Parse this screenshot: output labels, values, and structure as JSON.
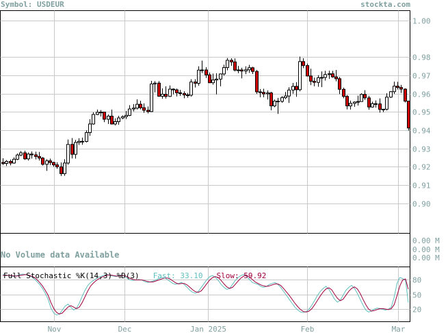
{
  "header": {
    "symbol_label": "Symbol: USDEUR",
    "site": "stockta.com"
  },
  "volume_panel": {
    "message": "No Volume data Available",
    "axis_labels": [
      "0.00 M",
      "0.00 M",
      "0.00 M"
    ]
  },
  "stochastic": {
    "title": "Full Stochastic %K(14,3) %D(3)",
    "fast_label": "Fast: 33.10",
    "slow_label": "Slow: 59.92",
    "fast_color": "#5fbfbf",
    "slow_color": "#a0003f"
  },
  "colors": {
    "up_candle": "#ffffff",
    "down_candle": "#cc0000",
    "grid": "#c8c8c8",
    "axis_text": "#7f9f9f"
  },
  "chart_data": [
    {
      "type": "candlestick",
      "title": "",
      "x_tick_labels": [
        "Nov",
        "Dec",
        "Jan 2025",
        "Feb",
        "Mar"
      ],
      "y_ticks": [
        0.9,
        0.91,
        0.92,
        0.93,
        0.94,
        0.95,
        0.96,
        0.97,
        0.98,
        1.0
      ],
      "y_tick_labels": [
        "0.90",
        "0.91",
        "0.92",
        "0.93",
        "0.94",
        "0.95",
        "0.96",
        "0.97",
        "0.98",
        "1.00"
      ],
      "ylim": [
        0.8835,
        1.0055
      ],
      "grid": true,
      "axis_side": "right",
      "candles": [
        [
          0.9223,
          0.9246,
          0.9209,
          0.9218
        ],
        [
          0.9218,
          0.9236,
          0.9204,
          0.9229
        ],
        [
          0.9229,
          0.9239,
          0.9207,
          0.922
        ],
        [
          0.922,
          0.9251,
          0.9216,
          0.9241
        ],
        [
          0.9241,
          0.9272,
          0.9236,
          0.9264
        ],
        [
          0.9264,
          0.9286,
          0.9257,
          0.9276
        ],
        [
          0.9276,
          0.9288,
          0.9237,
          0.9243
        ],
        [
          0.9243,
          0.9278,
          0.9234,
          0.9269
        ],
        [
          0.9269,
          0.9283,
          0.9244,
          0.9265
        ],
        [
          0.9265,
          0.9282,
          0.924,
          0.9256
        ],
        [
          0.9256,
          0.9281,
          0.9234,
          0.9247
        ],
        [
          0.9247,
          0.9253,
          0.9206,
          0.9213
        ],
        [
          0.9213,
          0.9241,
          0.9177,
          0.9232
        ],
        [
          0.9232,
          0.9244,
          0.9208,
          0.9223
        ],
        [
          0.9223,
          0.9227,
          0.92,
          0.921
        ],
        [
          0.921,
          0.9224,
          0.9189,
          0.9199
        ],
        [
          0.9199,
          0.9223,
          0.9149,
          0.9162
        ],
        [
          0.9162,
          0.9241,
          0.915,
          0.922
        ],
        [
          0.922,
          0.9349,
          0.9211,
          0.9322
        ],
        [
          0.9322,
          0.9357,
          0.9245,
          0.9268
        ],
        [
          0.9268,
          0.9347,
          0.9244,
          0.9333
        ],
        [
          0.9333,
          0.9356,
          0.9319,
          0.9339
        ],
        [
          0.9339,
          0.9359,
          0.932,
          0.9338
        ],
        [
          0.9338,
          0.9399,
          0.9333,
          0.9387
        ],
        [
          0.9387,
          0.946,
          0.9369,
          0.9434
        ],
        [
          0.9434,
          0.9498,
          0.943,
          0.9486
        ],
        [
          0.9486,
          0.9513,
          0.9482,
          0.9498
        ],
        [
          0.9498,
          0.951,
          0.9475,
          0.9499
        ],
        [
          0.9499,
          0.95,
          0.9444,
          0.946
        ],
        [
          0.946,
          0.9486,
          0.9434,
          0.9477
        ],
        [
          0.9477,
          0.9513,
          0.9431,
          0.9434
        ],
        [
          0.9434,
          0.9465,
          0.9426,
          0.9447
        ],
        [
          0.9447,
          0.9479,
          0.943,
          0.9467
        ],
        [
          0.9467,
          0.9481,
          0.946,
          0.9474
        ],
        [
          0.9474,
          0.9505,
          0.9461,
          0.9481
        ],
        [
          0.9481,
          0.9537,
          0.9477,
          0.9516
        ],
        [
          0.9516,
          0.9543,
          0.9503,
          0.9521
        ],
        [
          0.9521,
          0.9569,
          0.9513,
          0.9542
        ],
        [
          0.9542,
          0.9561,
          0.9514,
          0.9523
        ],
        [
          0.9523,
          0.9547,
          0.9495,
          0.9509
        ],
        [
          0.9509,
          0.953,
          0.9492,
          0.9502
        ],
        [
          0.9502,
          0.967,
          0.9499,
          0.9653
        ],
        [
          0.9653,
          0.9669,
          0.9607,
          0.9658
        ],
        [
          0.9658,
          0.9669,
          0.9583,
          0.9586
        ],
        [
          0.9586,
          0.9629,
          0.9572,
          0.9597
        ],
        [
          0.9597,
          0.964,
          0.9573,
          0.9585
        ],
        [
          0.9585,
          0.9645,
          0.9582,
          0.9625
        ],
        [
          0.9625,
          0.9629,
          0.9596,
          0.9621
        ],
        [
          0.9621,
          0.9628,
          0.9585,
          0.9605
        ],
        [
          0.9605,
          0.9621,
          0.9588,
          0.9601
        ],
        [
          0.9601,
          0.9613,
          0.9575,
          0.9593
        ],
        [
          0.9593,
          0.9604,
          0.9578,
          0.9592
        ],
        [
          0.9592,
          0.9679,
          0.9584,
          0.9664
        ],
        [
          0.9664,
          0.9679,
          0.9634,
          0.9657
        ],
        [
          0.9657,
          0.975,
          0.9644,
          0.9729
        ],
        [
          0.9729,
          0.9781,
          0.9713,
          0.973
        ],
        [
          0.973,
          0.9745,
          0.9686,
          0.9703
        ],
        [
          0.9703,
          0.9716,
          0.9658,
          0.966
        ],
        [
          0.966,
          0.971,
          0.9649,
          0.9675
        ],
        [
          0.9675,
          0.9712,
          0.9596,
          0.968
        ],
        [
          0.968,
          0.9711,
          0.964,
          0.9708
        ],
        [
          0.9708,
          0.9759,
          0.9699,
          0.9743
        ],
        [
          0.9743,
          0.9795,
          0.9728,
          0.9783
        ],
        [
          0.9783,
          0.9794,
          0.9753,
          0.9774
        ],
        [
          0.9774,
          0.9793,
          0.9722,
          0.9729
        ],
        [
          0.9729,
          0.9752,
          0.9712,
          0.973
        ],
        [
          0.973,
          0.9742,
          0.9684,
          0.9724
        ],
        [
          0.9724,
          0.975,
          0.9707,
          0.9731
        ],
        [
          0.9731,
          0.9758,
          0.9714,
          0.9742
        ],
        [
          0.9742,
          0.9747,
          0.9708,
          0.9722
        ],
        [
          0.9722,
          0.973,
          0.9599,
          0.961
        ],
        [
          0.961,
          0.9625,
          0.958,
          0.9607
        ],
        [
          0.9607,
          0.9627,
          0.958,
          0.9599
        ],
        [
          0.9599,
          0.9618,
          0.9568,
          0.9604
        ],
        [
          0.9604,
          0.961,
          0.9509,
          0.9533
        ],
        [
          0.9533,
          0.9568,
          0.9526,
          0.9559
        ],
        [
          0.9559,
          0.9577,
          0.9489,
          0.9558
        ],
        [
          0.9558,
          0.9587,
          0.955,
          0.9578
        ],
        [
          0.9578,
          0.9609,
          0.957,
          0.9587
        ],
        [
          0.9587,
          0.9635,
          0.9549,
          0.962
        ],
        [
          0.962,
          0.9659,
          0.96,
          0.964
        ],
        [
          0.964,
          0.9663,
          0.9583,
          0.9622
        ],
        [
          0.9622,
          0.9803,
          0.9613,
          0.9776
        ],
        [
          0.9776,
          0.9794,
          0.974,
          0.9754
        ],
        [
          0.9754,
          0.9765,
          0.9694,
          0.9697
        ],
        [
          0.9697,
          0.9737,
          0.9647,
          0.9668
        ],
        [
          0.9668,
          0.9688,
          0.964,
          0.9662
        ],
        [
          0.9662,
          0.9701,
          0.9638,
          0.9687
        ],
        [
          0.9687,
          0.9722,
          0.9636,
          0.9689
        ],
        [
          0.9689,
          0.9725,
          0.9672,
          0.9705
        ],
        [
          0.9705,
          0.9726,
          0.9681,
          0.9709
        ],
        [
          0.9709,
          0.9725,
          0.9687,
          0.9692
        ],
        [
          0.9692,
          0.973,
          0.9668,
          0.9682
        ],
        [
          0.9682,
          0.9692,
          0.9598,
          0.9624
        ],
        [
          0.9624,
          0.9633,
          0.9575,
          0.9585
        ],
        [
          0.9585,
          0.9593,
          0.9514,
          0.9533
        ],
        [
          0.9533,
          0.9562,
          0.9513,
          0.9547
        ],
        [
          0.9547,
          0.9558,
          0.9528,
          0.9554
        ],
        [
          0.9554,
          0.9589,
          0.9535,
          0.9557
        ],
        [
          0.9557,
          0.9602,
          0.9556,
          0.9596
        ],
        [
          0.9596,
          0.9619,
          0.9566,
          0.9577
        ],
        [
          0.9577,
          0.9588,
          0.9512,
          0.9527
        ],
        [
          0.9527,
          0.9556,
          0.9523,
          0.9545
        ],
        [
          0.9545,
          0.9563,
          0.9524,
          0.9544
        ],
        [
          0.9544,
          0.9574,
          0.9496,
          0.9514
        ],
        [
          0.9514,
          0.9516,
          0.9499,
          0.9515
        ],
        [
          0.9515,
          0.9602,
          0.9508,
          0.9581
        ],
        [
          0.9581,
          0.9614,
          0.9577,
          0.9611
        ],
        [
          0.9611,
          0.9666,
          0.9599,
          0.9641
        ],
        [
          0.9641,
          0.9665,
          0.9623,
          0.9634
        ],
        [
          0.9634,
          0.9648,
          0.9604,
          0.9625
        ],
        [
          0.9625,
          0.9629,
          0.9552,
          0.9559
        ],
        [
          0.9559,
          0.9562,
          0.9398,
          0.9412
        ]
      ]
    },
    {
      "type": "line",
      "title": "Full Stochastic %K(14,3) %D(3)",
      "y_ticks": [
        20,
        50,
        80
      ],
      "y_tick_labels": [
        "20",
        "50",
        "80"
      ],
      "ylim": [
        0,
        100
      ],
      "series": [
        {
          "name": "Fast",
          "values": [
            90,
            89,
            88,
            87,
            86,
            88,
            90,
            91,
            90,
            88,
            86,
            82,
            76,
            70,
            62,
            52,
            40,
            22,
            12,
            8,
            10,
            18,
            26,
            30,
            24,
            18,
            22,
            32,
            46,
            58,
            68,
            74,
            78,
            82,
            85,
            87,
            89,
            90,
            88,
            87,
            86,
            88,
            89,
            86,
            82,
            79,
            78,
            79,
            80,
            79,
            76,
            74,
            75,
            77,
            79,
            82,
            84,
            84,
            80,
            76,
            72,
            70,
            72,
            74,
            70,
            64,
            58,
            54,
            52,
            56,
            64,
            72,
            80,
            86,
            88,
            84,
            78,
            70,
            64,
            60,
            62,
            70,
            78,
            84,
            88,
            90,
            86,
            80,
            74,
            72,
            70,
            66,
            64,
            66,
            70,
            72,
            74,
            70,
            64,
            56,
            48,
            40,
            32,
            24,
            18,
            14,
            13,
            15,
            20,
            28,
            38,
            48,
            56,
            62,
            66,
            60,
            50,
            40,
            34,
            38,
            48,
            58,
            64,
            68,
            62,
            52,
            40,
            28,
            18,
            14,
            16,
            20,
            22,
            21,
            19,
            18,
            20,
            24,
            44,
            72,
            84,
            82,
            78,
            33
          ]
        },
        {
          "name": "Slow",
          "values": [
            88,
            89,
            88,
            88,
            87,
            87,
            88,
            89,
            90,
            89,
            87,
            85,
            80,
            74,
            67,
            58,
            48,
            33,
            21,
            13,
            10,
            12,
            18,
            24,
            27,
            24,
            21,
            24,
            33,
            45,
            57,
            67,
            73,
            78,
            82,
            85,
            87,
            89,
            89,
            88,
            87,
            87,
            88,
            88,
            85,
            82,
            80,
            79,
            79,
            79,
            78,
            76,
            75,
            75,
            77,
            79,
            81,
            83,
            83,
            81,
            77,
            73,
            71,
            72,
            72,
            69,
            64,
            59,
            55,
            54,
            57,
            64,
            72,
            79,
            84,
            86,
            84,
            78,
            71,
            65,
            62,
            64,
            70,
            77,
            83,
            87,
            88,
            85,
            80,
            75,
            72,
            69,
            67,
            66,
            67,
            69,
            71,
            71,
            68,
            62,
            55,
            48,
            40,
            32,
            25,
            19,
            15,
            14,
            16,
            21,
            29,
            38,
            47,
            55,
            61,
            63,
            59,
            50,
            42,
            37,
            40,
            48,
            56,
            62,
            65,
            61,
            52,
            40,
            29,
            20,
            16,
            17,
            19,
            21,
            21,
            20,
            19,
            21,
            29,
            47,
            67,
            79,
            81,
            60
          ]
        }
      ]
    }
  ]
}
